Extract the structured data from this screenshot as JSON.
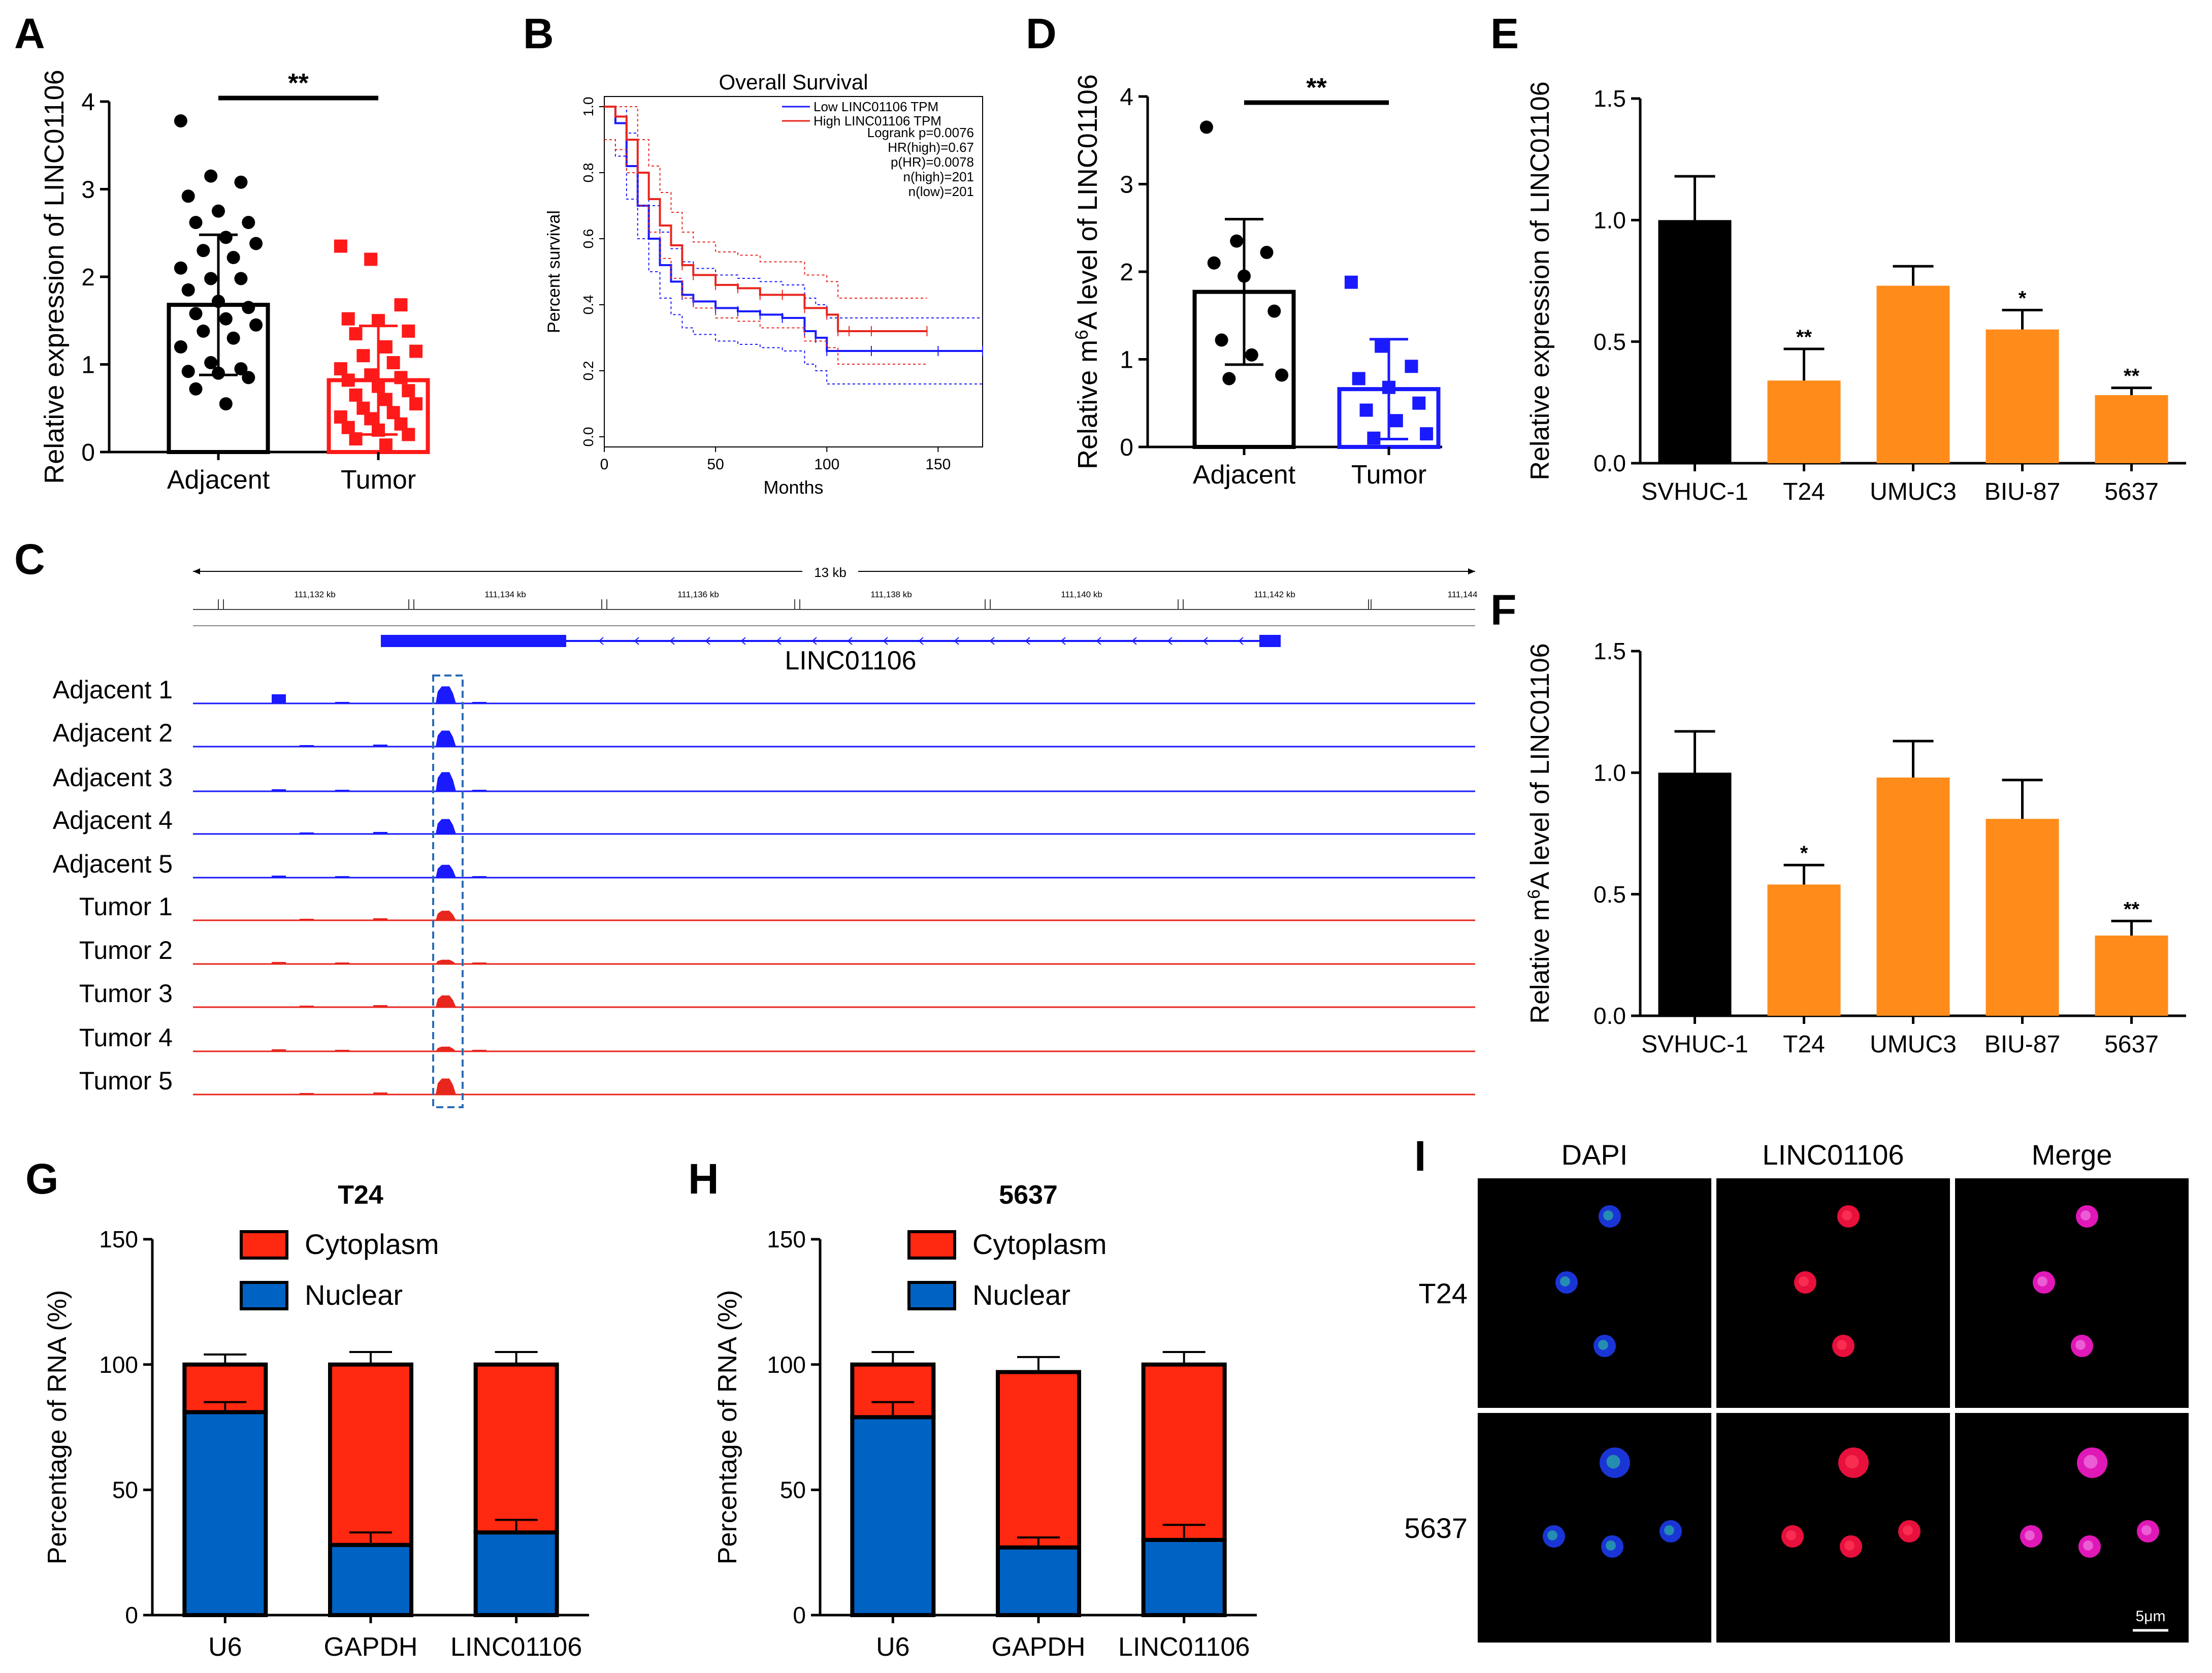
{
  "panels": {
    "A": {
      "letter": "A"
    },
    "B": {
      "letter": "B"
    },
    "C": {
      "letter": "C"
    },
    "D": {
      "letter": "D"
    },
    "E": {
      "letter": "E"
    },
    "F": {
      "letter": "F"
    },
    "G": {
      "letter": "G"
    },
    "H": {
      "letter": "H"
    },
    "I": {
      "letter": "I"
    }
  },
  "chart_data": [
    {
      "id": "A",
      "type": "bar",
      "ylabel": "Relative expression of LINC01106",
      "categories": [
        "Adjacent",
        "Tumor"
      ],
      "values": [
        1.68,
        0.82
      ],
      "sd": [
        0.8,
        0.62
      ],
      "ylim": [
        0,
        4
      ],
      "yticks": [
        "0",
        "1",
        "2",
        "3",
        "4"
      ],
      "significance": "**",
      "points": [
        [
          3.78,
          3.15,
          3.08,
          2.92,
          2.75,
          2.62,
          2.62,
          2.45,
          2.38,
          2.3,
          2.22,
          2.1,
          1.98,
          1.98,
          1.85,
          1.72,
          1.65,
          1.58,
          1.52,
          1.45,
          1.38,
          1.3,
          1.2,
          1.02,
          0.95,
          0.92,
          0.9,
          0.85,
          0.72,
          0.55
        ],
        [
          2.35,
          2.2,
          1.68,
          1.52,
          1.5,
          1.38,
          1.35,
          1.2,
          1.15,
          1.1,
          1.02,
          0.95,
          0.88,
          0.85,
          0.82,
          0.75,
          0.7,
          0.65,
          0.6,
          0.55,
          0.5,
          0.45,
          0.4,
          0.38,
          0.32,
          0.28,
          0.25,
          0.2,
          0.15,
          0.08
        ]
      ]
    },
    {
      "id": "B",
      "type": "line",
      "title": "Overall Survival",
      "xlabel": "Months",
      "ylabel": "Percent survival",
      "xticks": [
        "0",
        "50",
        "100",
        "150"
      ],
      "yticks": [
        "0.0",
        "0.2",
        "0.4",
        "0.6",
        "0.8",
        "1.0"
      ],
      "xlim": [
        0,
        170
      ],
      "ylim": [
        0,
        1
      ],
      "legend": [
        "Low LINC01106 TPM",
        "High LINC01106 TPM"
      ],
      "stats": [
        "Logrank p=0.0076",
        "HR(high)=0.67",
        "p(HR)=0.0078",
        "n(high)=201",
        "n(low)=201"
      ],
      "series": [
        {
          "name": "Low LINC01106 TPM",
          "color": "#1a1aff",
          "x": [
            0,
            5,
            10,
            15,
            20,
            25,
            30,
            35,
            40,
            50,
            60,
            70,
            80,
            90,
            95,
            100,
            120,
            150,
            170
          ],
          "y": [
            1.0,
            0.95,
            0.82,
            0.7,
            0.6,
            0.52,
            0.47,
            0.43,
            0.41,
            0.39,
            0.38,
            0.37,
            0.36,
            0.32,
            0.3,
            0.26,
            0.26,
            0.26,
            0.26
          ]
        },
        {
          "name": "High LINC01106 TPM",
          "color": "#e8261e",
          "x": [
            0,
            5,
            10,
            15,
            20,
            25,
            30,
            35,
            40,
            50,
            60,
            70,
            80,
            90,
            100,
            105,
            110,
            120,
            145
          ],
          "y": [
            1.0,
            0.97,
            0.9,
            0.8,
            0.72,
            0.64,
            0.58,
            0.52,
            0.49,
            0.46,
            0.45,
            0.43,
            0.43,
            0.39,
            0.37,
            0.32,
            0.32,
            0.32,
            0.32
          ]
        }
      ]
    },
    {
      "id": "C",
      "type": "track",
      "scale_label": "13 kb",
      "coords": [
        "111,132 kb",
        "111,134 kb",
        "111,136 kb",
        "111,138 kb",
        "111,140 kb",
        "111,142 kb",
        "111,144"
      ],
      "gene": "LINC01106",
      "tracks": [
        {
          "label": "Adjacent 1",
          "group": "adjacent",
          "peak": 0.8
        },
        {
          "label": "Adjacent 2",
          "group": "adjacent",
          "peak": 0.75
        },
        {
          "label": "Adjacent 3",
          "group": "adjacent",
          "peak": 0.9
        },
        {
          "label": "Adjacent 4",
          "group": "adjacent",
          "peak": 0.7
        },
        {
          "label": "Adjacent 5",
          "group": "adjacent",
          "peak": 0.6
        },
        {
          "label": "Tumor 1",
          "group": "tumor",
          "peak": 0.45
        },
        {
          "label": "Tumor 2",
          "group": "tumor",
          "peak": 0.2
        },
        {
          "label": "Tumor 3",
          "group": "tumor",
          "peak": 0.55
        },
        {
          "label": "Tumor 4",
          "group": "tumor",
          "peak": 0.22
        },
        {
          "label": "Tumor 5",
          "group": "tumor",
          "peak": 0.75
        }
      ]
    },
    {
      "id": "D",
      "type": "bar",
      "ylabel_pre": "Relative m",
      "ylabel_sup": "6",
      "ylabel_post": "A level of LINC01106",
      "categories": [
        "Adjacent",
        "Tumor"
      ],
      "values": [
        1.77,
        0.66
      ],
      "sd": [
        0.83,
        0.57
      ],
      "ylim": [
        0,
        4
      ],
      "yticks": [
        "0",
        "1",
        "2",
        "3",
        "4"
      ],
      "significance": "**",
      "points": [
        [
          3.65,
          2.35,
          2.22,
          2.1,
          1.95,
          1.55,
          1.22,
          1.05,
          0.82,
          0.78
        ],
        [
          1.88,
          1.15,
          0.92,
          0.78,
          0.68,
          0.5,
          0.42,
          0.3,
          0.15,
          0.1
        ]
      ]
    },
    {
      "id": "E",
      "type": "bar",
      "ylabel": "Relative expression of LINC01106",
      "categories": [
        "SVHUC-1",
        "T24",
        "UMUC3",
        "BIU-87",
        "5637"
      ],
      "values": [
        1.0,
        0.34,
        0.73,
        0.55,
        0.28
      ],
      "sd": [
        0.18,
        0.13,
        0.08,
        0.08,
        0.03
      ],
      "colors": [
        "#000000",
        "#ff8c1a",
        "#ff8c1a",
        "#ff8c1a",
        "#ff8c1a"
      ],
      "marks": [
        "",
        "**",
        "",
        "*",
        "**"
      ],
      "ylim": [
        0,
        1.5
      ],
      "yticks": [
        "0.0",
        "0.5",
        "1.0",
        "1.5"
      ]
    },
    {
      "id": "F",
      "type": "bar",
      "ylabel_pre": "Relative m",
      "ylabel_sup": "6",
      "ylabel_post": "A level of LINC01106",
      "categories": [
        "SVHUC-1",
        "T24",
        "UMUC3",
        "BIU-87",
        "5637"
      ],
      "values": [
        1.0,
        0.54,
        0.98,
        0.81,
        0.33
      ],
      "sd": [
        0.17,
        0.08,
        0.15,
        0.16,
        0.06
      ],
      "colors": [
        "#000000",
        "#ff8c1a",
        "#ff8c1a",
        "#ff8c1a",
        "#ff8c1a"
      ],
      "marks": [
        "",
        "*",
        "",
        "",
        "**"
      ],
      "ylim": [
        0,
        1.5
      ],
      "yticks": [
        "0.0",
        "0.5",
        "1.0",
        "1.5"
      ]
    },
    {
      "id": "G",
      "type": "bar",
      "stacked": true,
      "title": "T24",
      "ylabel": "Percentage of RNA (%)",
      "categories": [
        "U6",
        "GAPDH",
        "LINC01106"
      ],
      "series": [
        {
          "name": "Nuclear",
          "color": "#0062c3",
          "values": [
            81,
            28,
            33
          ],
          "sd": [
            4,
            5,
            5
          ]
        },
        {
          "name": "Cytoplasm",
          "color": "#ff2810",
          "values": [
            19,
            72,
            67
          ],
          "sd": [
            4,
            5,
            5
          ]
        }
      ],
      "legend": [
        "Cytoplasm",
        "Nuclear"
      ],
      "ylim": [
        0,
        150
      ],
      "yticks": [
        "0",
        "50",
        "100",
        "150"
      ]
    },
    {
      "id": "H",
      "type": "bar",
      "stacked": true,
      "title": "5637",
      "ylabel": "Percentage of RNA (%)",
      "categories": [
        "U6",
        "GAPDH",
        "LINC01106"
      ],
      "series": [
        {
          "name": "Nuclear",
          "color": "#0062c3",
          "values": [
            79,
            27,
            30
          ],
          "sd": [
            6,
            4,
            6
          ]
        },
        {
          "name": "Cytoplasm",
          "color": "#ff2810",
          "values": [
            21,
            70,
            70
          ],
          "sd": [
            5,
            6,
            5
          ]
        }
      ],
      "legend": [
        "Cytoplasm",
        "Nuclear"
      ],
      "ylim": [
        0,
        150
      ],
      "yticks": [
        "0",
        "50",
        "100",
        "150"
      ]
    }
  ],
  "imaging": {
    "columns": [
      "DAPI",
      "LINC01106",
      "Merge"
    ],
    "rows": [
      "T24",
      "5637"
    ],
    "scale_bar": "5μm"
  }
}
